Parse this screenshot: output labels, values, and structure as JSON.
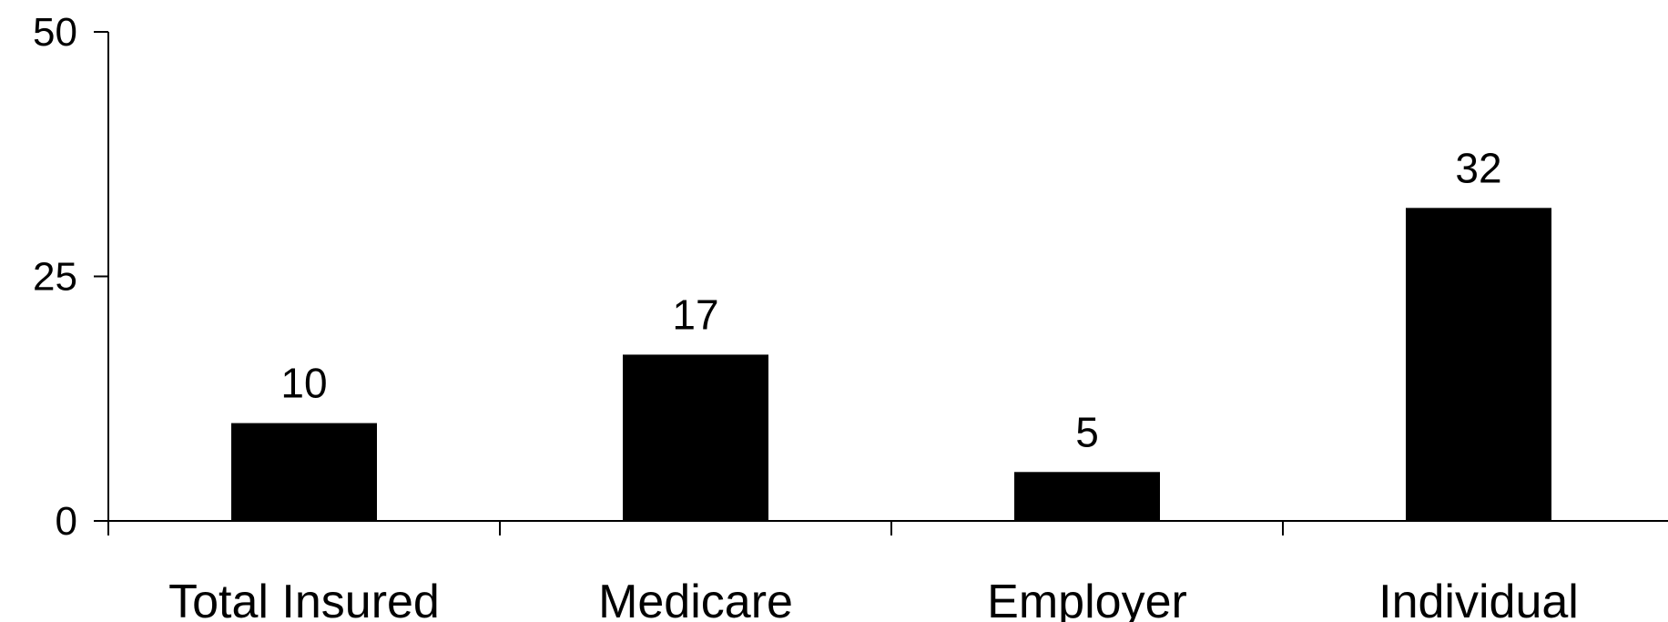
{
  "chart_data": {
    "type": "bar",
    "title": "",
    "xlabel": "",
    "ylabel": "",
    "categories": [
      "Total Insured",
      "Medicare",
      "Employer",
      "Individual"
    ],
    "values": [
      10,
      17,
      5,
      32
    ],
    "data_labels": [
      "10",
      "17",
      "5",
      "32"
    ],
    "ylim": [
      0,
      50
    ],
    "yticks": [
      0,
      25,
      50
    ],
    "grid": false,
    "legend": "none",
    "bar_color": "#000000",
    "axis_color": "#000000"
  }
}
